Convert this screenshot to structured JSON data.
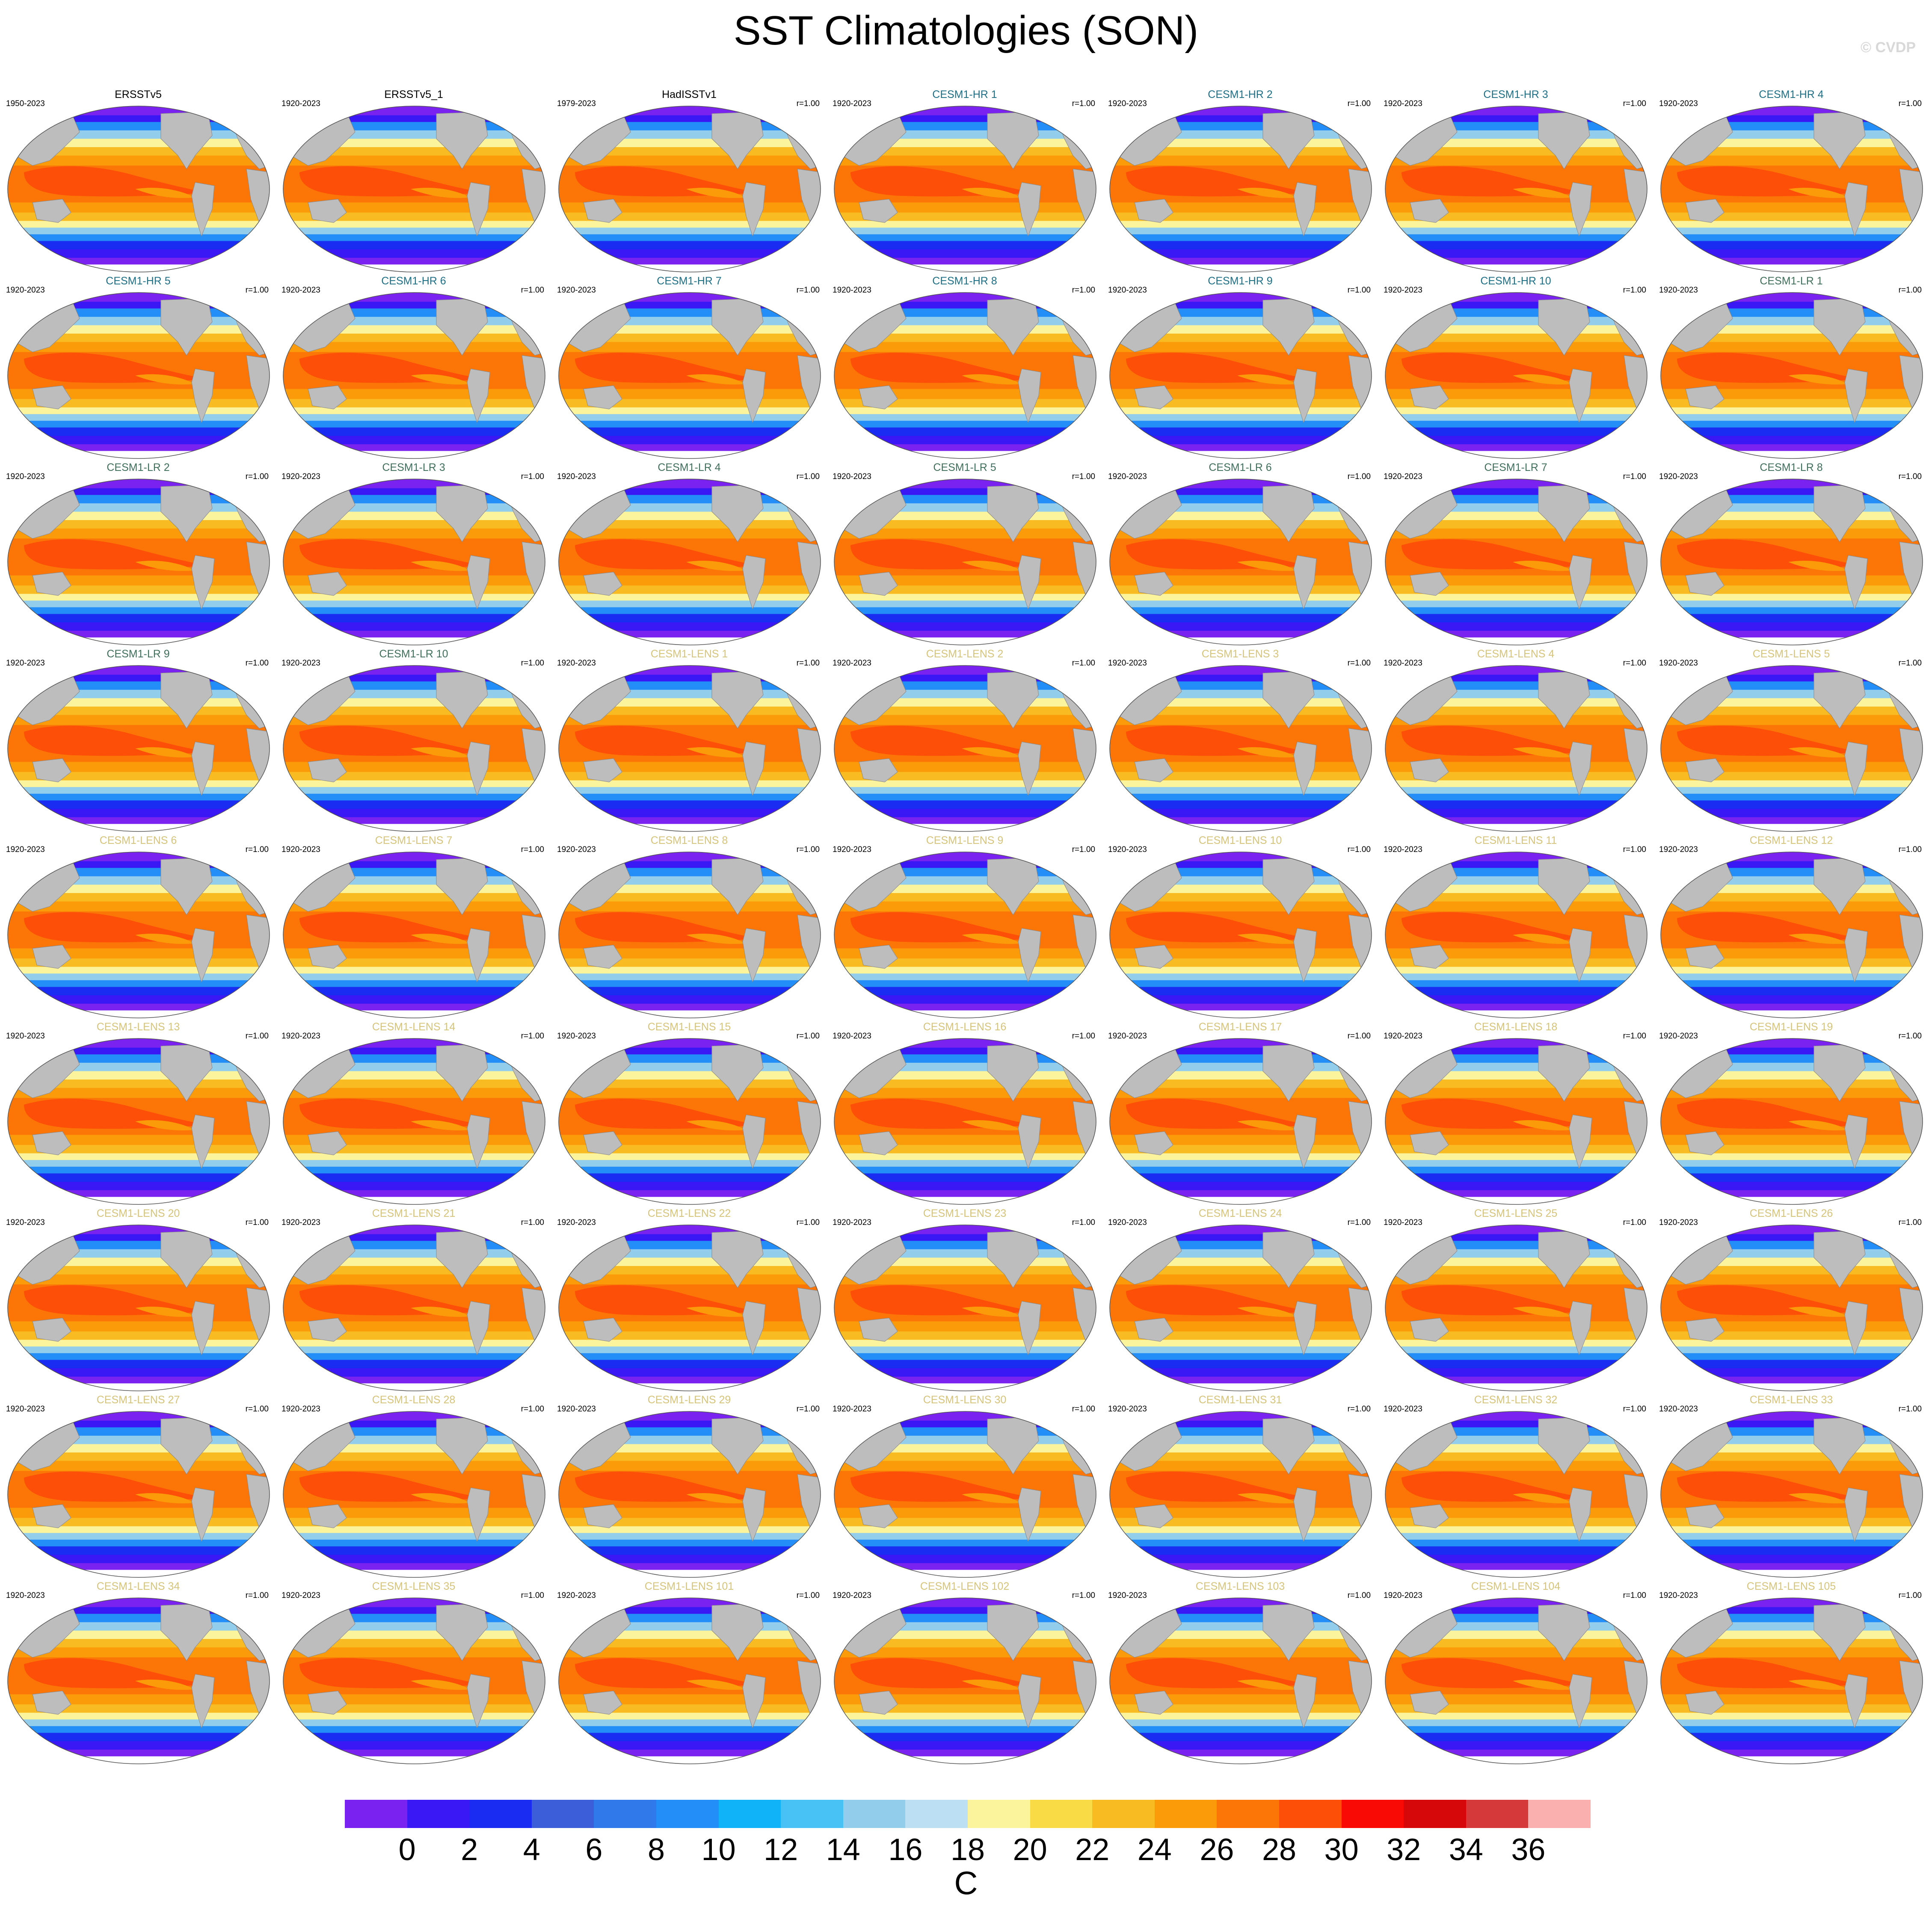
{
  "figure": {
    "title": "SST Climatologies (SON)",
    "watermark": "© CVDP",
    "colorbar": {
      "unit": "C",
      "ticks": [
        "0",
        "2",
        "4",
        "6",
        "8",
        "10",
        "12",
        "14",
        "16",
        "18",
        "20",
        "22",
        "24",
        "26",
        "28",
        "30",
        "32",
        "34",
        "36"
      ],
      "colors": [
        "#7a22f0",
        "#3a18f5",
        "#1a2cf2",
        "#3c5ed8",
        "#3079ea",
        "#238ef8",
        "#10b2f8",
        "#48c2f5",
        "#93cdec",
        "#bddff3",
        "#fbf49c",
        "#f9dc45",
        "#f9bb22",
        "#fc9b09",
        "#fc7607",
        "#fd4f07",
        "#fa0a04",
        "#d70809",
        "#d63939",
        "#fbb0b0"
      ]
    },
    "panels": [
      {
        "title": "ERSSTv5",
        "years": "1950-2023",
        "corr": "",
        "type": "obs"
      },
      {
        "title": "ERSSTv5_1",
        "years": "1920-2023",
        "corr": "",
        "type": "obs"
      },
      {
        "title": "HadISSTv1",
        "years": "1979-2023",
        "corr": "r=1.00",
        "type": "obs"
      },
      {
        "title": "CESM1-HR 1",
        "years": "1920-2023",
        "corr": "r=1.00",
        "type": "hr"
      },
      {
        "title": "CESM1-HR 2",
        "years": "1920-2023",
        "corr": "r=1.00",
        "type": "hr"
      },
      {
        "title": "CESM1-HR 3",
        "years": "1920-2023",
        "corr": "r=1.00",
        "type": "hr"
      },
      {
        "title": "CESM1-HR 4",
        "years": "1920-2023",
        "corr": "r=1.00",
        "type": "hr"
      },
      {
        "title": "CESM1-HR 5",
        "years": "1920-2023",
        "corr": "r=1.00",
        "type": "hr"
      },
      {
        "title": "CESM1-HR 6",
        "years": "1920-2023",
        "corr": "r=1.00",
        "type": "hr"
      },
      {
        "title": "CESM1-HR 7",
        "years": "1920-2023",
        "corr": "r=1.00",
        "type": "hr"
      },
      {
        "title": "CESM1-HR 8",
        "years": "1920-2023",
        "corr": "r=1.00",
        "type": "hr"
      },
      {
        "title": "CESM1-HR 9",
        "years": "1920-2023",
        "corr": "r=1.00",
        "type": "hr"
      },
      {
        "title": "CESM1-HR 10",
        "years": "1920-2023",
        "corr": "r=1.00",
        "type": "hr"
      },
      {
        "title": "CESM1-LR 1",
        "years": "1920-2023",
        "corr": "r=1.00",
        "type": "lr"
      },
      {
        "title": "CESM1-LR 2",
        "years": "1920-2023",
        "corr": "r=1.00",
        "type": "lr"
      },
      {
        "title": "CESM1-LR 3",
        "years": "1920-2023",
        "corr": "r=1.00",
        "type": "lr"
      },
      {
        "title": "CESM1-LR 4",
        "years": "1920-2023",
        "corr": "r=1.00",
        "type": "lr"
      },
      {
        "title": "CESM1-LR 5",
        "years": "1920-2023",
        "corr": "r=1.00",
        "type": "lr"
      },
      {
        "title": "CESM1-LR 6",
        "years": "1920-2023",
        "corr": "r=1.00",
        "type": "lr"
      },
      {
        "title": "CESM1-LR 7",
        "years": "1920-2023",
        "corr": "r=1.00",
        "type": "lr"
      },
      {
        "title": "CESM1-LR 8",
        "years": "1920-2023",
        "corr": "r=1.00",
        "type": "lr"
      },
      {
        "title": "CESM1-LR 9",
        "years": "1920-2023",
        "corr": "r=1.00",
        "type": "lr"
      },
      {
        "title": "CESM1-LR 10",
        "years": "1920-2023",
        "corr": "r=1.00",
        "type": "lr"
      },
      {
        "title": "CESM1-LENS 1",
        "years": "1920-2023",
        "corr": "r=1.00",
        "type": "lens"
      },
      {
        "title": "CESM1-LENS 2",
        "years": "1920-2023",
        "corr": "r=1.00",
        "type": "lens"
      },
      {
        "title": "CESM1-LENS 3",
        "years": "1920-2023",
        "corr": "r=1.00",
        "type": "lens"
      },
      {
        "title": "CESM1-LENS 4",
        "years": "1920-2023",
        "corr": "r=1.00",
        "type": "lens"
      },
      {
        "title": "CESM1-LENS 5",
        "years": "1920-2023",
        "corr": "r=1.00",
        "type": "lens"
      },
      {
        "title": "CESM1-LENS 6",
        "years": "1920-2023",
        "corr": "r=1.00",
        "type": "lens"
      },
      {
        "title": "CESM1-LENS 7",
        "years": "1920-2023",
        "corr": "r=1.00",
        "type": "lens"
      },
      {
        "title": "CESM1-LENS 8",
        "years": "1920-2023",
        "corr": "r=1.00",
        "type": "lens"
      },
      {
        "title": "CESM1-LENS 9",
        "years": "1920-2023",
        "corr": "r=1.00",
        "type": "lens"
      },
      {
        "title": "CESM1-LENS 10",
        "years": "1920-2023",
        "corr": "r=1.00",
        "type": "lens"
      },
      {
        "title": "CESM1-LENS 11",
        "years": "1920-2023",
        "corr": "r=1.00",
        "type": "lens"
      },
      {
        "title": "CESM1-LENS 12",
        "years": "1920-2023",
        "corr": "r=1.00",
        "type": "lens"
      },
      {
        "title": "CESM1-LENS 13",
        "years": "1920-2023",
        "corr": "r=1.00",
        "type": "lens"
      },
      {
        "title": "CESM1-LENS 14",
        "years": "1920-2023",
        "corr": "r=1.00",
        "type": "lens"
      },
      {
        "title": "CESM1-LENS 15",
        "years": "1920-2023",
        "corr": "r=1.00",
        "type": "lens"
      },
      {
        "title": "CESM1-LENS 16",
        "years": "1920-2023",
        "corr": "r=1.00",
        "type": "lens"
      },
      {
        "title": "CESM1-LENS 17",
        "years": "1920-2023",
        "corr": "r=1.00",
        "type": "lens"
      },
      {
        "title": "CESM1-LENS 18",
        "years": "1920-2023",
        "corr": "r=1.00",
        "type": "lens"
      },
      {
        "title": "CESM1-LENS 19",
        "years": "1920-2023",
        "corr": "r=1.00",
        "type": "lens"
      },
      {
        "title": "CESM1-LENS 20",
        "years": "1920-2023",
        "corr": "r=1.00",
        "type": "lens"
      },
      {
        "title": "CESM1-LENS 21",
        "years": "1920-2023",
        "corr": "r=1.00",
        "type": "lens"
      },
      {
        "title": "CESM1-LENS 22",
        "years": "1920-2023",
        "corr": "r=1.00",
        "type": "lens"
      },
      {
        "title": "CESM1-LENS 23",
        "years": "1920-2023",
        "corr": "r=1.00",
        "type": "lens"
      },
      {
        "title": "CESM1-LENS 24",
        "years": "1920-2023",
        "corr": "r=1.00",
        "type": "lens"
      },
      {
        "title": "CESM1-LENS 25",
        "years": "1920-2023",
        "corr": "r=1.00",
        "type": "lens"
      },
      {
        "title": "CESM1-LENS 26",
        "years": "1920-2023",
        "corr": "r=1.00",
        "type": "lens"
      },
      {
        "title": "CESM1-LENS 27",
        "years": "1920-2023",
        "corr": "r=1.00",
        "type": "lens"
      },
      {
        "title": "CESM1-LENS 28",
        "years": "1920-2023",
        "corr": "r=1.00",
        "type": "lens"
      },
      {
        "title": "CESM1-LENS 29",
        "years": "1920-2023",
        "corr": "r=1.00",
        "type": "lens"
      },
      {
        "title": "CESM1-LENS 30",
        "years": "1920-2023",
        "corr": "r=1.00",
        "type": "lens"
      },
      {
        "title": "CESM1-LENS 31",
        "years": "1920-2023",
        "corr": "r=1.00",
        "type": "lens"
      },
      {
        "title": "CESM1-LENS 32",
        "years": "1920-2023",
        "corr": "r=1.00",
        "type": "lens"
      },
      {
        "title": "CESM1-LENS 33",
        "years": "1920-2023",
        "corr": "r=1.00",
        "type": "lens"
      },
      {
        "title": "CESM1-LENS 34",
        "years": "1920-2023",
        "corr": "r=1.00",
        "type": "lens"
      },
      {
        "title": "CESM1-LENS 35",
        "years": "1920-2023",
        "corr": "r=1.00",
        "type": "lens"
      },
      {
        "title": "CESM1-LENS 101",
        "years": "1920-2023",
        "corr": "r=1.00",
        "type": "lens"
      },
      {
        "title": "CESM1-LENS 102",
        "years": "1920-2023",
        "corr": "r=1.00",
        "type": "lens"
      },
      {
        "title": "CESM1-LENS 103",
        "years": "1920-2023",
        "corr": "r=1.00",
        "type": "lens"
      },
      {
        "title": "CESM1-LENS 104",
        "years": "1920-2023",
        "corr": "r=1.00",
        "type": "lens"
      },
      {
        "title": "CESM1-LENS 105",
        "years": "1920-2023",
        "corr": "r=1.00",
        "type": "lens"
      }
    ],
    "title_colors": {
      "obs": "#000000",
      "hr": "#1d6f86",
      "lr": "#3f6f5b",
      "lens": "#d6c47a"
    }
  }
}
